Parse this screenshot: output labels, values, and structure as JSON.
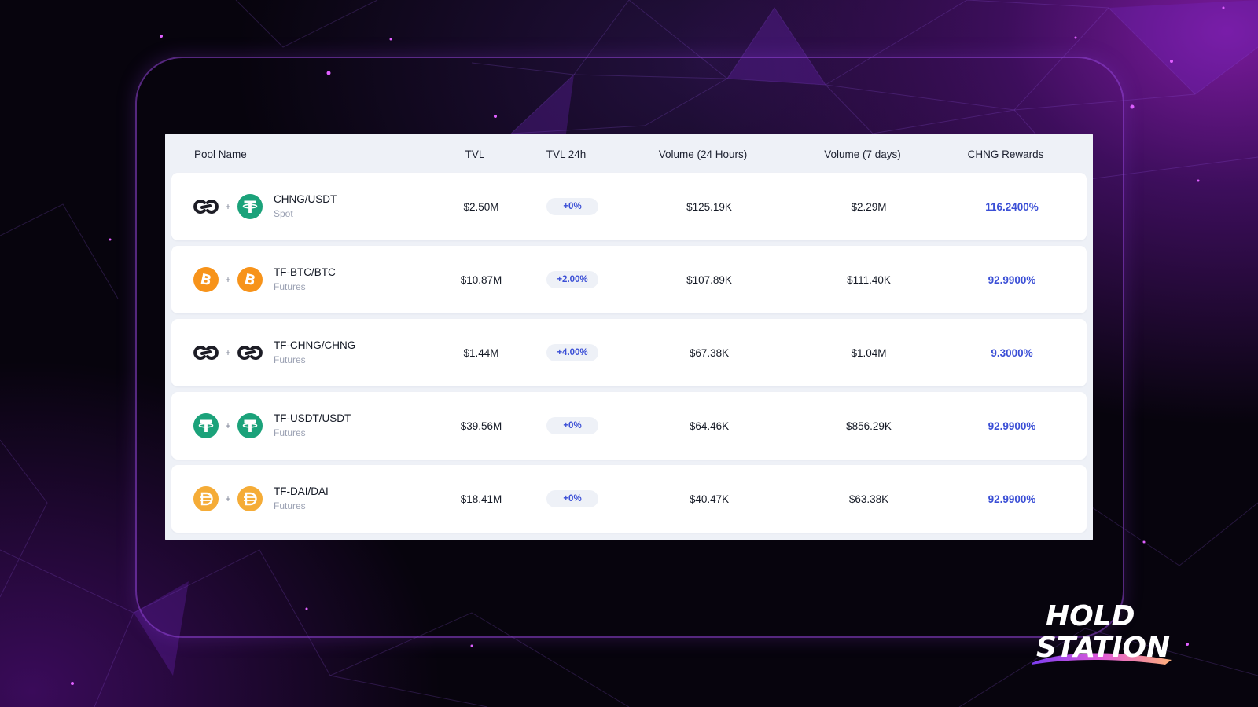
{
  "table": {
    "headers": {
      "pool": "Pool Name",
      "tvl": "TVL",
      "tvl24": "TVL 24h",
      "vol24": "Volume (24 Hours)",
      "vol7": "Volume (7 days)",
      "rewards": "CHNG Rewards"
    },
    "rows": [
      {
        "pair": "CHNG/USDT",
        "type": "Spot",
        "icon_left": "chng-icon",
        "icon_right": "usdt-icon",
        "tvl": "$2.50M",
        "tvl24": "+0%",
        "vol24": "$125.19K",
        "vol7": "$2.29M",
        "rewards": "116.2400%"
      },
      {
        "pair": "TF-BTC/BTC",
        "type": "Futures",
        "icon_left": "btc-icon",
        "icon_right": "btc-icon",
        "tvl": "$10.87M",
        "tvl24": "+2.00%",
        "vol24": "$107.89K",
        "vol7": "$111.40K",
        "rewards": "92.9900%"
      },
      {
        "pair": "TF-CHNG/CHNG",
        "type": "Futures",
        "icon_left": "chng-icon",
        "icon_right": "chng-icon",
        "tvl": "$1.44M",
        "tvl24": "+4.00%",
        "vol24": "$67.38K",
        "vol7": "$1.04M",
        "rewards": "9.3000%"
      },
      {
        "pair": "TF-USDT/USDT",
        "type": "Futures",
        "icon_left": "usdt-icon",
        "icon_right": "usdt-icon",
        "tvl": "$39.56M",
        "tvl24": "+0%",
        "vol24": "$64.46K",
        "vol7": "$856.29K",
        "rewards": "92.9900%"
      },
      {
        "pair": "TF-DAI/DAI",
        "type": "Futures",
        "icon_left": "dai-icon",
        "icon_right": "dai-icon",
        "tvl": "$18.41M",
        "tvl24": "+0%",
        "vol24": "$40.47K",
        "vol7": "$63.38K",
        "rewards": "92.9900%"
      }
    ],
    "plus_sign": "+"
  },
  "brand": {
    "line1": "HOLD",
    "line2": "STATION"
  },
  "colors": {
    "accent": "#3b4fd6",
    "usdt": "#1ba27a",
    "btc": "#f7931a",
    "dai": "#f5ac37",
    "chng": "#1d1d26"
  }
}
